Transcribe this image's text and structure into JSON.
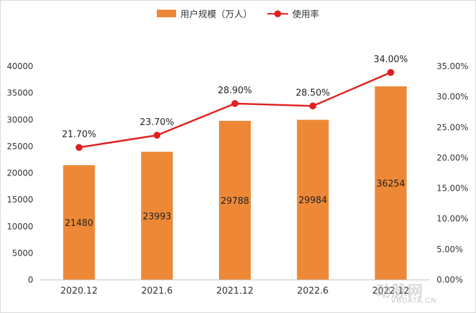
{
  "legend": {
    "bar_label": "用户规模（万人）",
    "line_label": "使用率"
  },
  "watermark": {
    "logo": "动脉网",
    "url": "VBDATA.CN"
  },
  "colors": {
    "bar": "#ED8936",
    "line": "#E02020",
    "axis_text": "#333333",
    "axis_line": "#BFBFBF"
  },
  "chart_data": {
    "type": "bar",
    "categories": [
      "2020.12",
      "2021.6",
      "2021.12",
      "2022.6",
      "2022.12"
    ],
    "series": [
      {
        "name": "用户规模（万人）",
        "type": "bar",
        "axis": "left",
        "values": [
          21480,
          23993,
          29788,
          29984,
          36254
        ],
        "labels": [
          "21480",
          "23993",
          "29788",
          "29984",
          "36254"
        ]
      },
      {
        "name": "使用率",
        "type": "line",
        "axis": "right",
        "values": [
          21.7,
          23.7,
          28.9,
          28.5,
          34.0
        ],
        "labels": [
          "21.70%",
          "23.70%",
          "28.90%",
          "28.50%",
          "34.00%"
        ]
      }
    ],
    "y_left": {
      "lim": [
        0,
        40000
      ],
      "ticks": [
        0,
        5000,
        10000,
        15000,
        20000,
        25000,
        30000,
        35000,
        40000
      ],
      "tick_labels": [
        "0",
        "5000",
        "10000",
        "15000",
        "20000",
        "25000",
        "30000",
        "35000",
        "40000"
      ]
    },
    "y_right": {
      "lim": [
        0,
        35
      ],
      "ticks": [
        0,
        5,
        10,
        15,
        20,
        25,
        30,
        35
      ],
      "tick_labels": [
        "0.00%",
        "5.00%",
        "10.00%",
        "15.00%",
        "20.00%",
        "25.00%",
        "30.00%",
        "35.00%"
      ]
    },
    "title": "",
    "xlabel": "",
    "ylabel": "",
    "grid": false,
    "legend_position": "top-center"
  }
}
